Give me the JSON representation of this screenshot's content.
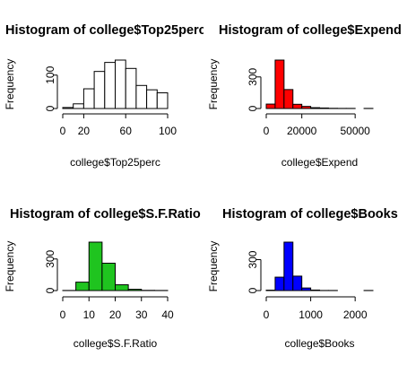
{
  "chart_data": [
    {
      "type": "bar",
      "title": "Histogram of college$Top25perc",
      "xlabel": "college$Top25perc",
      "ylabel": "Frequency",
      "fill": "#ffffff",
      "bins": [
        [
          0,
          10
        ],
        [
          10,
          20
        ],
        [
          20,
          30
        ],
        [
          30,
          40
        ],
        [
          40,
          50
        ],
        [
          50,
          60
        ],
        [
          60,
          70
        ],
        [
          70,
          80
        ],
        [
          80,
          90
        ],
        [
          90,
          100
        ]
      ],
      "values": [
        3,
        14,
        59,
        111,
        138,
        145,
        120,
        69,
        56,
        47
      ],
      "xlim": [
        0,
        100
      ],
      "ylim": [
        0,
        145
      ],
      "xticks": [
        0,
        20,
        60,
        100
      ],
      "yticks": [
        0,
        100
      ]
    },
    {
      "type": "bar",
      "title": "Histogram of college$Expend",
      "xlabel": "college$Expend",
      "ylabel": "Frequency",
      "fill": "#ff0000",
      "bins": [
        [
          0,
          5000
        ],
        [
          5000,
          10000
        ],
        [
          10000,
          15000
        ],
        [
          15000,
          20000
        ],
        [
          20000,
          25000
        ],
        [
          25000,
          30000
        ],
        [
          30000,
          35000
        ],
        [
          35000,
          40000
        ],
        [
          40000,
          45000
        ],
        [
          45000,
          50000
        ],
        [
          50000,
          55000
        ],
        [
          55000,
          60000
        ]
      ],
      "values": [
        42,
        460,
        180,
        40,
        20,
        8,
        5,
        2,
        1,
        1,
        0,
        1
      ],
      "xlim": [
        0,
        60000
      ],
      "ylim": [
        0,
        460
      ],
      "xticks": [
        0,
        20000,
        50000
      ],
      "yticks": [
        0,
        300
      ]
    },
    {
      "type": "bar",
      "title": "Histogram of college$S.F.Ratio",
      "xlabel": "college$S.F.Ratio",
      "ylabel": "Frequency",
      "fill": "#1fc41f",
      "bins": [
        [
          0,
          5
        ],
        [
          5,
          10
        ],
        [
          10,
          15
        ],
        [
          15,
          20
        ],
        [
          20,
          25
        ],
        [
          25,
          30
        ],
        [
          30,
          35
        ],
        [
          35,
          40
        ]
      ],
      "values": [
        1,
        80,
        460,
        260,
        55,
        12,
        2,
        1
      ],
      "xlim": [
        0,
        40
      ],
      "ylim": [
        0,
        460
      ],
      "xticks": [
        0,
        10,
        20,
        30,
        40
      ],
      "yticks": [
        0,
        300
      ]
    },
    {
      "type": "bar",
      "title": "Histogram of college$Books",
      "xlabel": "college$Books",
      "ylabel": "Frequency",
      "fill": "#0000ff",
      "bins": [
        [
          0,
          200
        ],
        [
          200,
          400
        ],
        [
          400,
          600
        ],
        [
          600,
          800
        ],
        [
          800,
          1000
        ],
        [
          1000,
          1200
        ],
        [
          1200,
          1400
        ],
        [
          1400,
          1600
        ],
        [
          1600,
          1800
        ],
        [
          1800,
          2000
        ],
        [
          2000,
          2200
        ],
        [
          2200,
          2400
        ]
      ],
      "values": [
        4,
        130,
        470,
        140,
        25,
        5,
        1,
        1,
        0,
        0,
        0,
        1
      ],
      "xlim": [
        0,
        2400
      ],
      "ylim": [
        0,
        470
      ],
      "xticks": [
        0,
        1000,
        2000
      ],
      "yticks": [
        0,
        300
      ]
    }
  ]
}
